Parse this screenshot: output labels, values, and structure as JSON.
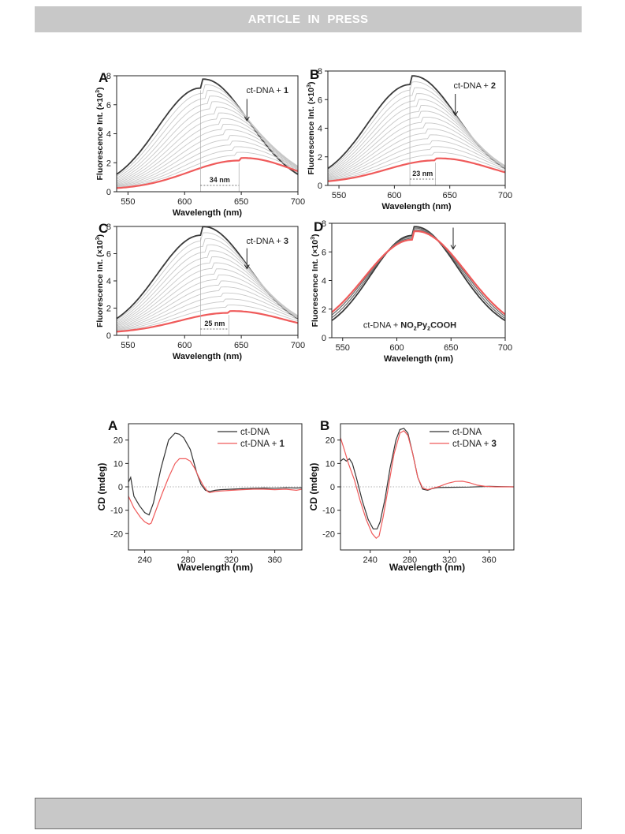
{
  "header": {
    "title": "ARTICLE  IN  PRESS"
  },
  "colors": {
    "header_bg": "#c8c8c8",
    "footer_bg": "#c8c8c8",
    "dark_line": "#3a3a3a",
    "red_line": "#ef5a5a",
    "light_line": "#c8c8c8"
  },
  "chart_data": [
    {
      "type": "line",
      "panel": "A",
      "xlabel": "Wavelength (nm)",
      "ylabel_main": "Fluorescence Int. (×10",
      "ylabel_sup": "3",
      "ylabel_end": ")",
      "xlim": [
        540,
        700
      ],
      "ylim": [
        0,
        8
      ],
      "xticks": [
        550,
        600,
        650,
        700
      ],
      "yticks": [
        0,
        2,
        4,
        6,
        8
      ],
      "annotation_plain": "ct-DNA + ",
      "annotation_bold": "1",
      "shift_label": "34 nm",
      "peak_start": 614,
      "peak_end": 648,
      "top_max": 7.0,
      "bottom_max": 2.0,
      "bottom_center": 648,
      "curve_count": 15
    },
    {
      "type": "line",
      "panel": "B",
      "xlabel": "Wavelength (nm)",
      "ylabel_main": "Fluorescence Int. (×10",
      "ylabel_sup": "3",
      "ylabel_end": ")",
      "xlim": [
        540,
        700
      ],
      "ylim": [
        0,
        8
      ],
      "xticks": [
        550,
        600,
        650,
        700
      ],
      "yticks": [
        0,
        2,
        4,
        6,
        8
      ],
      "annotation_plain": "ct-DNA + ",
      "annotation_bold": "2",
      "shift_label": "23 nm",
      "peak_start": 614,
      "peak_end": 637,
      "top_max": 6.9,
      "bottom_max": 1.6,
      "bottom_center": 637,
      "curve_count": 15
    },
    {
      "type": "line",
      "panel": "C",
      "xlabel": "Wavelength (nm)",
      "ylabel_main": "Fluorescence Int. (×10",
      "ylabel_sup": "3",
      "ylabel_end": ")",
      "xlim": [
        540,
        700
      ],
      "ylim": [
        0,
        8
      ],
      "xticks": [
        550,
        600,
        650,
        700
      ],
      "yticks": [
        0,
        2,
        4,
        6,
        8
      ],
      "annotation_plain": "ct-DNA + ",
      "annotation_bold": "3",
      "shift_label": "25 nm",
      "peak_start": 614,
      "peak_end": 639,
      "top_max": 7.2,
      "bottom_max": 1.5,
      "bottom_center": 639,
      "curve_count": 15
    },
    {
      "type": "line",
      "panel": "D",
      "xlabel": "Wavelength (nm)",
      "ylabel_main": "Fluorescence Int. (×10",
      "ylabel_sup": "3",
      "ylabel_end": ")",
      "xlim": [
        540,
        700
      ],
      "ylim": [
        0,
        8
      ],
      "xticks": [
        550,
        600,
        650,
        700
      ],
      "yticks": [
        0,
        2,
        4,
        6,
        8
      ],
      "annotation_plain": "ct-DNA + ",
      "annotation_bold": "NO2Py2COOH",
      "top_max": 7.0,
      "bottom_max": 6.7,
      "curve_count": 4
    },
    {
      "type": "line",
      "panel": "A",
      "xlabel": "Wavelength (nm)",
      "ylabel": "CD (mdeg)",
      "xlim": [
        225,
        385
      ],
      "ylim": [
        -27,
        27
      ],
      "xticks": [
        240,
        280,
        320,
        360
      ],
      "yticks": [
        -20,
        -10,
        0,
        10,
        20
      ],
      "legend_position": "top-right",
      "series": [
        {
          "name": "ct-DNA",
          "color": "#333333",
          "x": [
            225,
            227,
            230,
            235,
            240,
            244,
            248,
            255,
            262,
            268,
            272,
            276,
            282,
            288,
            292,
            296,
            300,
            305,
            310,
            320,
            330,
            340,
            350,
            360,
            370,
            380,
            385
          ],
          "y": [
            2,
            4,
            -4,
            -8,
            -11,
            -12,
            -7,
            8,
            20,
            23,
            22.5,
            21,
            16,
            6,
            1,
            -1.5,
            -2,
            -1.5,
            -1.2,
            -1,
            -0.8,
            -0.6,
            -0.5,
            -0.6,
            -0.4,
            -0.5,
            -0.4
          ]
        },
        {
          "name": "ct-DNA + ",
          "name_bold": "1",
          "color": "#ef5a5a",
          "x": [
            225,
            230,
            236,
            240,
            244,
            246,
            248,
            252,
            256,
            262,
            268,
            272,
            278,
            282,
            286,
            290,
            294,
            298,
            300,
            305,
            310,
            320,
            330,
            340,
            350,
            360,
            370,
            380,
            385
          ],
          "y": [
            -4,
            -9,
            -13,
            -15,
            -16,
            -15.5,
            -13,
            -8,
            -3,
            4,
            10,
            12,
            12,
            11,
            8,
            4,
            0.5,
            -2,
            -2.5,
            -2,
            -1.8,
            -1.5,
            -1.2,
            -1,
            -1,
            -1.2,
            -1,
            -1.5,
            -1
          ]
        }
      ]
    },
    {
      "type": "line",
      "panel": "B",
      "xlabel": "Wavelength (nm)",
      "ylabel": "CD (mdeg)",
      "xlim": [
        210,
        385
      ],
      "ylim": [
        -27,
        27
      ],
      "xticks": [
        240,
        280,
        320,
        360
      ],
      "yticks": [
        -20,
        -10,
        0,
        10,
        20
      ],
      "legend_position": "top-right",
      "series": [
        {
          "name": "ct-DNA",
          "color": "#333333",
          "x": [
            210,
            213,
            216,
            219,
            222,
            226,
            232,
            238,
            243,
            247,
            250,
            255,
            260,
            266,
            270,
            274,
            278,
            283,
            288,
            293,
            298,
            302,
            308,
            320,
            340,
            360,
            385
          ],
          "y": [
            11,
            12,
            11,
            12,
            10,
            4,
            -6,
            -14,
            -18,
            -18,
            -15,
            -5,
            8,
            20,
            24.5,
            25,
            23,
            14,
            4,
            -1,
            -1.5,
            -0.8,
            -0.3,
            -0.2,
            -0.1,
            0.2,
            0
          ]
        },
        {
          "name": "ct-DNA + ",
          "name_bold": "3",
          "color": "#ef5a5a",
          "x": [
            210,
            213,
            218,
            224,
            230,
            236,
            242,
            246,
            249,
            253,
            258,
            264,
            270,
            274,
            278,
            283,
            288,
            293,
            298,
            304,
            310,
            318,
            326,
            333,
            340,
            348,
            356,
            366,
            376,
            385
          ],
          "y": [
            21,
            17,
            10,
            3,
            -6,
            -14,
            -20,
            -22,
            -21,
            -13,
            -1,
            14,
            23,
            24,
            22,
            14,
            4,
            -0.5,
            -1.2,
            -0.5,
            0.2,
            1.5,
            2.3,
            2.4,
            1.8,
            0.7,
            0.2,
            0,
            0,
            0
          ]
        }
      ]
    }
  ]
}
